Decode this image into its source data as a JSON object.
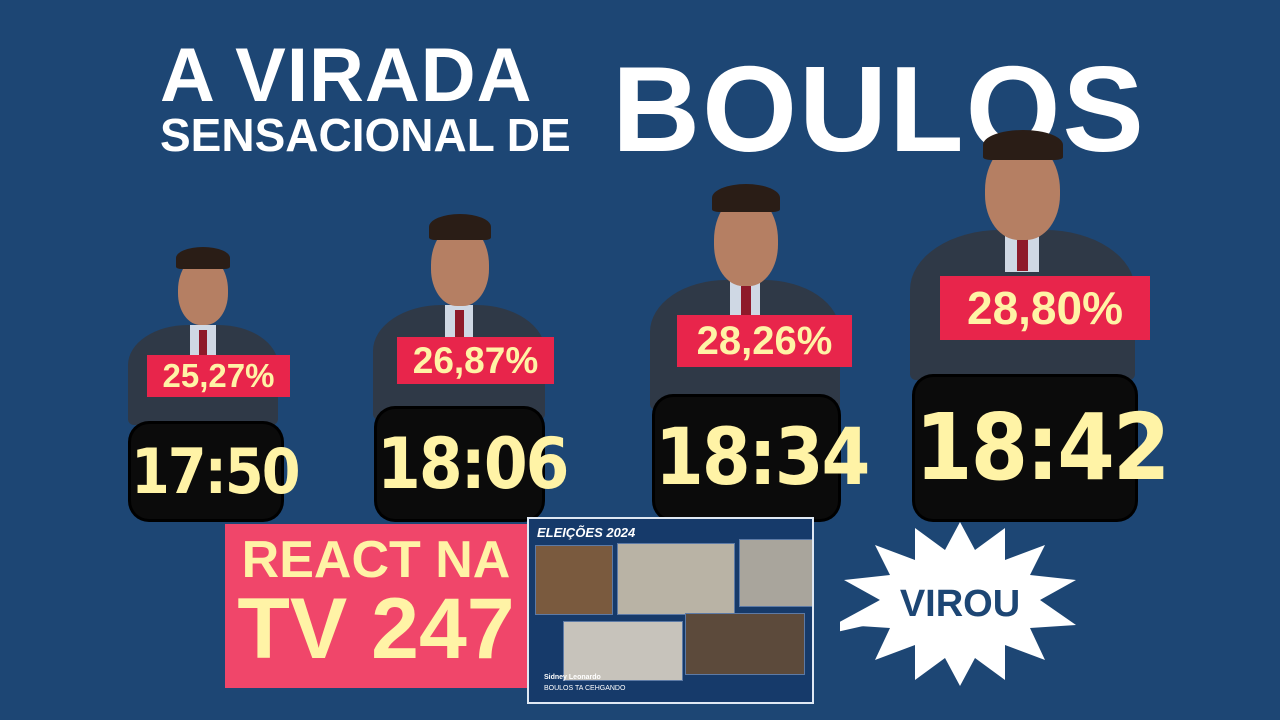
{
  "headline": {
    "line1": "A VIRADA",
    "line2": "SENSACIONAL DE",
    "name": "BOULOS"
  },
  "snapshots": [
    {
      "percent": "25,27%",
      "time": "17:50"
    },
    {
      "percent": "26,87%",
      "time": "18:06"
    },
    {
      "percent": "28,26%",
      "time": "18:34"
    },
    {
      "percent": "28,80%",
      "time": "18:42"
    }
  ],
  "react_box": {
    "line1": "REACT NA",
    "line2": "TV 247"
  },
  "inset": {
    "banner": "ELEIÇÕES 2024",
    "speaker": "Sidney Leonardo",
    "caption": "BOULOS TA CEHGANDO"
  },
  "burst": {
    "text": "VIROU"
  },
  "colors": {
    "background": "#1d4674",
    "percent_bg": "#e8254b",
    "accent_text": "#fff3a6",
    "react_bg": "#f0466a"
  }
}
